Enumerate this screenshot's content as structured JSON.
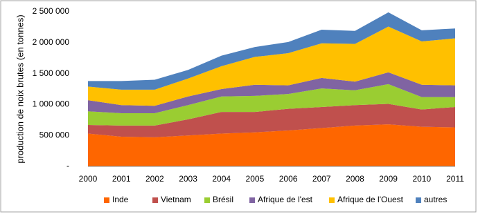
{
  "chart_data": {
    "type": "stacked-area",
    "y_label": "production de noix brutes (en tonnes)",
    "categories": [
      "2000",
      "2001",
      "2002",
      "2003",
      "2004",
      "2005",
      "2006",
      "2007",
      "2008",
      "2009",
      "2010",
      "2011"
    ],
    "series": [
      {
        "name": "Inde",
        "color": "#fe6600",
        "values": [
          530000,
          480000,
          470000,
          500000,
          530000,
          550000,
          580000,
          620000,
          660000,
          680000,
          640000,
          630000
        ]
      },
      {
        "name": "Vietnam",
        "color": "#c0504d",
        "values": [
          140000,
          180000,
          190000,
          260000,
          350000,
          330000,
          350000,
          340000,
          330000,
          330000,
          280000,
          330000
        ]
      },
      {
        "name": "Brésil",
        "color": "#9acd32",
        "values": [
          220000,
          200000,
          200000,
          230000,
          250000,
          260000,
          240000,
          300000,
          240000,
          320000,
          200000,
          160000
        ]
      },
      {
        "name": "Afrique de l'est",
        "color": "#8064a2",
        "values": [
          180000,
          130000,
          120000,
          140000,
          120000,
          180000,
          140000,
          170000,
          140000,
          190000,
          200000,
          190000
        ]
      },
      {
        "name": "Afrique de l'Ouest",
        "color": "#ffc000",
        "values": [
          220000,
          250000,
          260000,
          290000,
          370000,
          450000,
          520000,
          560000,
          610000,
          740000,
          700000,
          760000
        ]
      },
      {
        "name": "autres",
        "color": "#4f81bd",
        "values": [
          90000,
          140000,
          160000,
          140000,
          170000,
          160000,
          180000,
          220000,
          210000,
          230000,
          180000,
          160000
        ]
      }
    ],
    "ylim": [
      0,
      2500000
    ],
    "yticks": [
      {
        "value": 0,
        "label": "-"
      },
      {
        "value": 500000,
        "label": "500 000"
      },
      {
        "value": 1000000,
        "label": "1 000 000"
      },
      {
        "value": 1500000,
        "label": "1 500 000"
      },
      {
        "value": 2000000,
        "label": "2 000 000"
      },
      {
        "value": 2500000,
        "label": "2 500 000"
      }
    ],
    "grid": false,
    "legend": "bottom"
  }
}
